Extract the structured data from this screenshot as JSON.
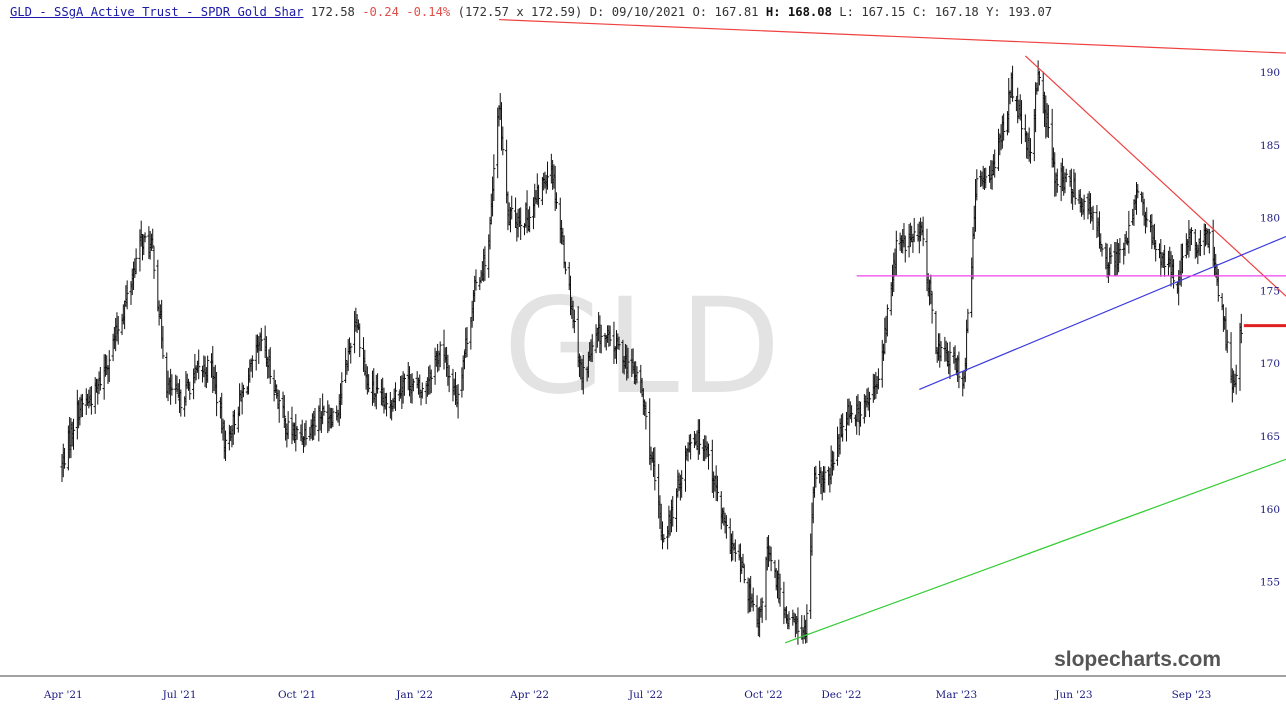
{
  "header": {
    "ticker_name": "GLD - SSgA Active Trust - SPDR Gold Shar",
    "last": "172.58",
    "change": "-0.24 -0.14%",
    "bid_ask": "(172.57 x 172.59)",
    "date_label": "D:",
    "date": "09/10/2021",
    "open_label": "O:",
    "open": "167.81",
    "high_label": "H:",
    "high": "168.08",
    "low_label": "L:",
    "low": "167.15",
    "close_label": "C:",
    "close": "167.18",
    "year_label": "Y:",
    "year": "193.07"
  },
  "watermark": "GLD",
  "branding": "slopecharts.com",
  "chart_data": {
    "type": "ohlc",
    "symbol": "GLD",
    "x_tick_labels": [
      "Apr '21",
      "Jul '21",
      "Oct '21",
      "Jan '22",
      "Apr '22",
      "Jul '22",
      "Oct '22",
      "Dec '22",
      "Mar '23",
      "Jun '23",
      "Sep '23"
    ],
    "y_tick_labels": [
      "155",
      "160",
      "165",
      "170",
      "175",
      "180",
      "185",
      "190"
    ],
    "ylim": [
      150.8,
      193.6
    ],
    "grid": false,
    "colors": {
      "bars": "#111111",
      "red_line": "#f04040",
      "blue_line": "#3a3adf",
      "magenta_line": "#ee44ee",
      "green_line": "#33cc33",
      "last_price_marker": "#e02020"
    },
    "path_points": [
      [
        "2021-03-31",
        163.0
      ],
      [
        "2021-04-12",
        166.8
      ],
      [
        "2021-04-26",
        167.9
      ],
      [
        "2021-05-07",
        170.5
      ],
      [
        "2021-05-20",
        174.2
      ],
      [
        "2021-06-01",
        178.5
      ],
      [
        "2021-06-10",
        177.8
      ],
      [
        "2021-06-21",
        168.5
      ],
      [
        "2021-07-01",
        167.4
      ],
      [
        "2021-07-15",
        169.4
      ],
      [
        "2021-07-26",
        169.8
      ],
      [
        "2021-08-06",
        164.3
      ],
      [
        "2021-08-19",
        167.8
      ],
      [
        "2021-09-03",
        171.5
      ],
      [
        "2021-09-10",
        169.4
      ],
      [
        "2021-09-23",
        165.5
      ],
      [
        "2021-10-04",
        165.0
      ],
      [
        "2021-10-18",
        166.5
      ],
      [
        "2021-11-01",
        166.6
      ],
      [
        "2021-11-16",
        173.3
      ],
      [
        "2021-11-25",
        168.5
      ],
      [
        "2021-12-10",
        167.0
      ],
      [
        "2021-12-24",
        168.9
      ],
      [
        "2022-01-07",
        168.0
      ],
      [
        "2022-01-21",
        171.0
      ],
      [
        "2022-02-03",
        167.6
      ],
      [
        "2022-02-17",
        175.0
      ],
      [
        "2022-02-28",
        178.0
      ],
      [
        "2022-03-08",
        188.0
      ],
      [
        "2022-03-15",
        180.0
      ],
      [
        "2022-03-31",
        180.0
      ],
      [
        "2022-04-18",
        183.7
      ],
      [
        "2022-05-02",
        175.0
      ],
      [
        "2022-05-12",
        169.0
      ],
      [
        "2022-05-25",
        172.0
      ],
      [
        "2022-06-10",
        171.0
      ],
      [
        "2022-06-27",
        168.6
      ],
      [
        "2022-07-14",
        158.0
      ],
      [
        "2022-07-21",
        159.5
      ],
      [
        "2022-08-05",
        165.0
      ],
      [
        "2022-08-17",
        164.5
      ],
      [
        "2022-09-01",
        158.5
      ],
      [
        "2022-09-15",
        155.6
      ],
      [
        "2022-09-27",
        151.7
      ],
      [
        "2022-10-04",
        157.0
      ],
      [
        "2022-10-20",
        152.5
      ],
      [
        "2022-11-03",
        151.4
      ],
      [
        "2022-11-10",
        162.0
      ],
      [
        "2022-11-21",
        162.0
      ],
      [
        "2022-12-05",
        166.8
      ],
      [
        "2022-12-16",
        166.5
      ],
      [
        "2022-12-30",
        168.6
      ],
      [
        "2023-01-13",
        178.0
      ],
      [
        "2023-02-02",
        178.9
      ],
      [
        "2023-02-14",
        171.0
      ],
      [
        "2023-02-28",
        170.0
      ],
      [
        "2023-03-07",
        169.0
      ],
      [
        "2023-03-17",
        182.5
      ],
      [
        "2023-03-31",
        183.5
      ],
      [
        "2023-04-13",
        189.0
      ],
      [
        "2023-04-28",
        184.0
      ],
      [
        "2023-05-04",
        190.3
      ],
      [
        "2023-05-17",
        183.0
      ],
      [
        "2023-06-01",
        182.0
      ],
      [
        "2023-06-14",
        180.3
      ],
      [
        "2023-06-29",
        176.9
      ],
      [
        "2023-07-12",
        178.0
      ],
      [
        "2023-07-20",
        182.0
      ],
      [
        "2023-08-03",
        178.0
      ],
      [
        "2023-08-21",
        175.7
      ],
      [
        "2023-09-01",
        179.0
      ],
      [
        "2023-09-06",
        177.6
      ],
      [
        "2023-09-15",
        178.9
      ],
      [
        "2023-09-26",
        173.2
      ],
      [
        "2023-10-03",
        168.6
      ],
      [
        "2023-10-06",
        169.5
      ],
      [
        "2023-10-10",
        172.6
      ]
    ],
    "trendlines": [
      {
        "color": "red",
        "from": [
          "2022-03-08",
          193.6
        ],
        "to": [
          "2023-11-14",
          191.3
        ]
      },
      {
        "color": "red",
        "from": [
          "2023-04-24",
          191.1
        ],
        "to": [
          "2023-11-14",
          174.6
        ]
      },
      {
        "color": "blue",
        "from": [
          "2023-01-31",
          168.2
        ],
        "to": [
          "2023-11-14",
          178.7
        ]
      },
      {
        "color": "magenta",
        "from": [
          "2022-12-13",
          176.0
        ],
        "to": [
          "2023-11-14",
          176.0
        ]
      },
      {
        "color": "green",
        "from": [
          "2022-10-18",
          150.8
        ],
        "to": [
          "2023-11-14",
          163.4
        ]
      }
    ],
    "last_price_marker": 172.58
  }
}
